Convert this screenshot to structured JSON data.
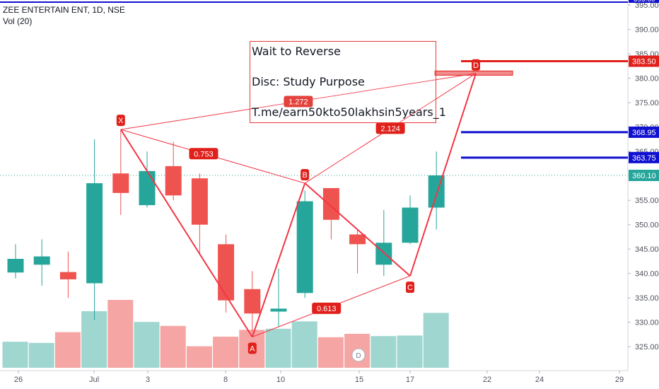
{
  "header": {
    "symbol_line": "ZEE ENTERTAIN ENT, 1D, NSE",
    "volume_line": "Vol (20)"
  },
  "note": {
    "line1": "Wait to Reverse",
    "line2": "Disc: Study Purpose",
    "line3": "T.me/earn50kto50lakhsin5years_1"
  },
  "colors": {
    "up": "#26a69a",
    "down": "#ef5350",
    "vol_up": "#9fd6d0",
    "vol_down": "#f5a5a3",
    "pattern": "#f23645",
    "level_blue": "#1010d0",
    "label_red": "#e0201b"
  },
  "chart_data": {
    "type": "candlestick",
    "title": "ZEE ENTERTAIN ENT, 1D, NSE",
    "x_tick_labels": [
      "26",
      "Jul",
      "3",
      "8",
      "10",
      "15",
      "17",
      "22",
      "24",
      "29"
    ],
    "y_ticks": [
      325,
      330,
      335,
      340,
      345,
      350,
      355,
      360,
      365,
      370,
      375,
      380,
      385,
      390,
      395
    ],
    "ylim": [
      320.3,
      396.5
    ],
    "candles": [
      {
        "open": 340.2,
        "high": 346.0,
        "low": 339.0,
        "close": 343.0
      },
      {
        "open": 341.8,
        "high": 347.0,
        "low": 337.5,
        "close": 343.5
      },
      {
        "open": 340.3,
        "high": 344.5,
        "low": 335.0,
        "close": 338.8
      },
      {
        "open": 338.0,
        "high": 367.5,
        "low": 330.5,
        "close": 358.5
      },
      {
        "open": 360.5,
        "high": 369.5,
        "low": 352.0,
        "close": 356.5
      },
      {
        "open": 354.0,
        "high": 365.0,
        "low": 353.5,
        "close": 361.0
      },
      {
        "open": 362.0,
        "high": 367.0,
        "low": 355.0,
        "close": 356.0
      },
      {
        "open": 359.5,
        "high": 360.5,
        "low": 344.0,
        "close": 350.0
      },
      {
        "open": 346.0,
        "high": 348.0,
        "low": 332.0,
        "close": 334.5
      },
      {
        "open": 336.8,
        "high": 340.5,
        "low": 328.0,
        "close": 331.8
      },
      {
        "open": 332.2,
        "high": 341.0,
        "low": 329.0,
        "close": 332.8
      },
      {
        "open": 336.0,
        "high": 357.0,
        "low": 335.0,
        "close": 354.8
      },
      {
        "open": 357.5,
        "high": 357.5,
        "low": 347.0,
        "close": 351.0
      },
      {
        "open": 348.0,
        "high": 349.0,
        "low": 340.0,
        "close": 346.0
      },
      {
        "open": 341.8,
        "high": 353.0,
        "low": 339.5,
        "close": 346.3
      },
      {
        "open": 346.3,
        "high": 356.0,
        "low": 346.0,
        "close": 353.5
      },
      {
        "open": 353.5,
        "high": 365.0,
        "low": 349.0,
        "close": 360.1
      }
    ],
    "volume_direction": [
      "up",
      "up",
      "down",
      "up",
      "down",
      "up",
      "down",
      "down",
      "down",
      "down",
      "up",
      "up",
      "down",
      "down",
      "up",
      "up",
      "up"
    ],
    "volume_relative": [
      0.46,
      0.44,
      0.63,
      1.0,
      1.2,
      0.81,
      0.74,
      0.38,
      0.55,
      0.67,
      0.69,
      0.82,
      0.54,
      0.6,
      0.56,
      0.57,
      0.97
    ],
    "last_price": "360.10",
    "levels": [
      {
        "label": "383.50",
        "value": 383.5,
        "color": "#e0201b"
      },
      {
        "label": "368.95",
        "value": 368.95,
        "color": "#1010d0"
      },
      {
        "label": "363.75",
        "value": 363.75,
        "color": "#1010d0"
      }
    ],
    "top_level_label": "395.00",
    "pattern_points": [
      {
        "label": "X",
        "bar": 4,
        "value": 369.5
      },
      {
        "label": "A",
        "bar": 9,
        "value": 327.0
      },
      {
        "label": "B",
        "bar": 11,
        "value": 358.5
      },
      {
        "label": "C",
        "bar": 15,
        "value": 339.5
      },
      {
        "label": "D",
        "bar": 17.5,
        "value": 381.0
      }
    ],
    "ratios": {
      "XB": "0.753",
      "AC": "0.613",
      "BD": "2.124",
      "XD": "1.272"
    },
    "event_marker": "D"
  }
}
